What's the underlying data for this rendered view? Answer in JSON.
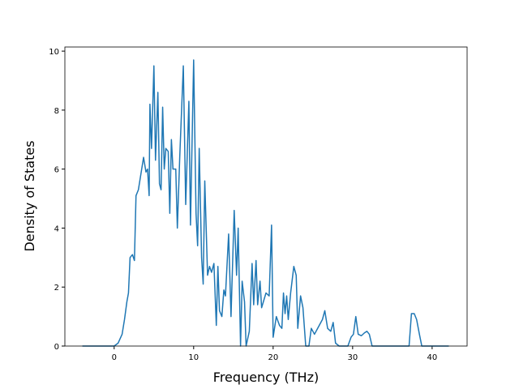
{
  "chart_data": {
    "type": "line",
    "x_label": "Frequency (THz)",
    "y_label": "Density of States",
    "x": [
      -4,
      0,
      0.5,
      1,
      1.3,
      1.6,
      1.8,
      2.0,
      2.3,
      2.55,
      2.75,
      3.05,
      3.7,
      4.0,
      4.2,
      4.4,
      4.5,
      4.7,
      5.0,
      5.2,
      5.5,
      5.7,
      5.9,
      6.1,
      6.3,
      6.5,
      6.8,
      7.0,
      7.2,
      7.4,
      7.75,
      7.95,
      8.25,
      8.7,
      9.0,
      9.4,
      9.6,
      10.0,
      10.3,
      10.5,
      10.7,
      11.0,
      11.2,
      11.4,
      11.75,
      12.0,
      12.25,
      12.55,
      12.85,
      13.05,
      13.25,
      13.55,
      13.8,
      14.0,
      14.4,
      14.7,
      15.1,
      15.4,
      15.6,
      15.9,
      16.1,
      16.4,
      16.6,
      17.0,
      17.35,
      17.55,
      17.85,
      18.05,
      18.35,
      18.55,
      19.1,
      19.5,
      19.8,
      20.0,
      20.4,
      20.8,
      21.1,
      21.3,
      21.5,
      21.7,
      21.9,
      22.2,
      22.6,
      22.9,
      23.1,
      23.45,
      23.75,
      24.1,
      24.5,
      24.8,
      25.2,
      25.8,
      26.2,
      26.5,
      26.85,
      27.25,
      27.55,
      27.85,
      28.3,
      29.4,
      29.8,
      30.1,
      30.4,
      30.7,
      31.1,
      31.5,
      31.8,
      32.1,
      32.45,
      37.1,
      37.4,
      37.75,
      38.05,
      38.4,
      38.7,
      42.1
    ],
    "series": [
      {
        "color": "#1f77b4",
        "values": [
          0,
          0,
          0.1,
          0.4,
          0.9,
          1.5,
          1.8,
          3.0,
          3.1,
          2.9,
          5.1,
          5.3,
          6.4,
          5.9,
          6.0,
          5.1,
          8.2,
          6.7,
          9.5,
          6.3,
          8.6,
          5.5,
          5.3,
          8.1,
          6.0,
          6.7,
          6.6,
          4.5,
          7.0,
          6.0,
          6.0,
          4.0,
          6.4,
          9.5,
          4.8,
          8.3,
          4.1,
          9.7,
          4.5,
          3.4,
          6.7,
          3.0,
          2.1,
          5.6,
          2.4,
          2.7,
          2.5,
          2.8,
          0.7,
          2.7,
          1.2,
          1.0,
          1.9,
          1.7,
          3.8,
          1.0,
          4.6,
          2.4,
          4.0,
          0,
          2.2,
          1.5,
          0,
          0.5,
          2.8,
          1.4,
          2.9,
          1.4,
          2.2,
          1.3,
          1.8,
          1.7,
          4.1,
          0.3,
          1.0,
          0.7,
          0.6,
          1.8,
          1.1,
          1.7,
          0.9,
          1.8,
          2.7,
          2.4,
          0.6,
          1.7,
          1.3,
          0,
          0,
          0.6,
          0.4,
          0.7,
          0.9,
          1.2,
          0.6,
          0.5,
          0.8,
          0.1,
          0,
          0,
          0.3,
          0.4,
          1.0,
          0.4,
          0.35,
          0.45,
          0.5,
          0.4,
          0,
          0,
          1.1,
          1.1,
          0.9,
          0.4,
          0,
          0
        ]
      }
    ],
    "xlim": [
      -6.2,
      44.4
    ],
    "ylim": [
      0,
      10.14
    ],
    "xticks": [
      0,
      10,
      20,
      30,
      40
    ],
    "yticks": [
      0,
      2,
      4,
      6,
      8,
      10
    ]
  }
}
